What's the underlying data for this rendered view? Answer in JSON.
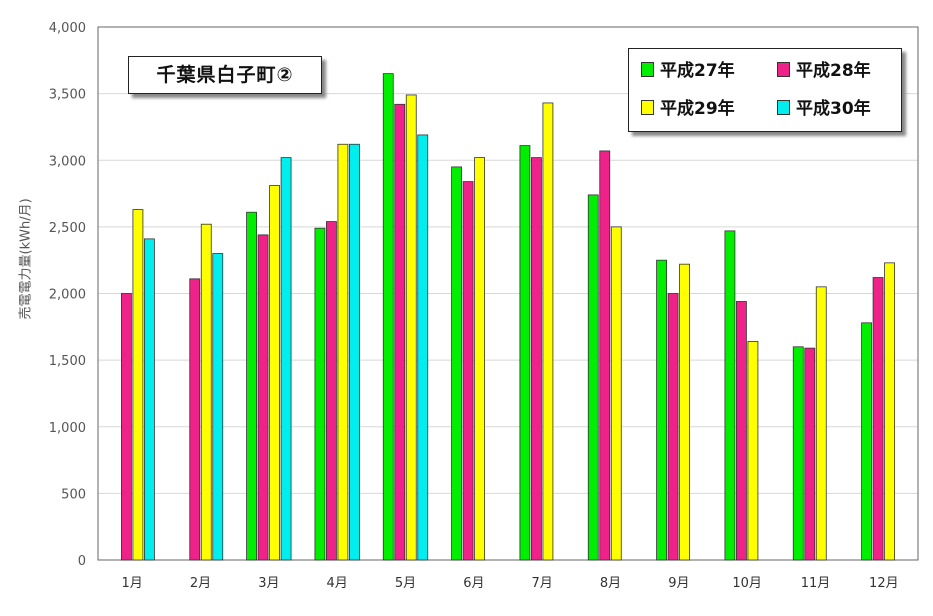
{
  "chart_data": {
    "type": "bar",
    "title": "千葉県白子町②",
    "ylabel": "売電電力量(kWh/月)",
    "xlabel": "",
    "ylim": [
      0,
      4000
    ],
    "yticks": [
      "0",
      "500",
      "1,000",
      "1,500",
      "2,000",
      "2,500",
      "3,000",
      "3,500",
      "4,000"
    ],
    "categories": [
      "1月",
      "2月",
      "3月",
      "4月",
      "5月",
      "6月",
      "7月",
      "8月",
      "9月",
      "10月",
      "11月",
      "12月"
    ],
    "grid": true,
    "legend_position": "top-right",
    "series": [
      {
        "name": "平成27年",
        "color": "#00ee00",
        "values": [
          null,
          null,
          2610,
          2490,
          3650,
          2950,
          3110,
          2740,
          2250,
          2470,
          1600,
          1780
        ]
      },
      {
        "name": "平成28年",
        "color": "#ee2288",
        "values": [
          2000,
          2110,
          2440,
          2540,
          3420,
          2840,
          3020,
          3070,
          2000,
          1940,
          1590,
          2120
        ]
      },
      {
        "name": "平成29年",
        "color": "#ffff00",
        "values": [
          2630,
          2520,
          2810,
          3120,
          3490,
          3020,
          3430,
          2500,
          2220,
          1640,
          2050,
          2230
        ]
      },
      {
        "name": "平成30年",
        "color": "#00eeee",
        "values": [
          2410,
          2300,
          3020,
          3120,
          3190,
          null,
          null,
          null,
          null,
          null,
          null,
          null
        ]
      }
    ]
  }
}
